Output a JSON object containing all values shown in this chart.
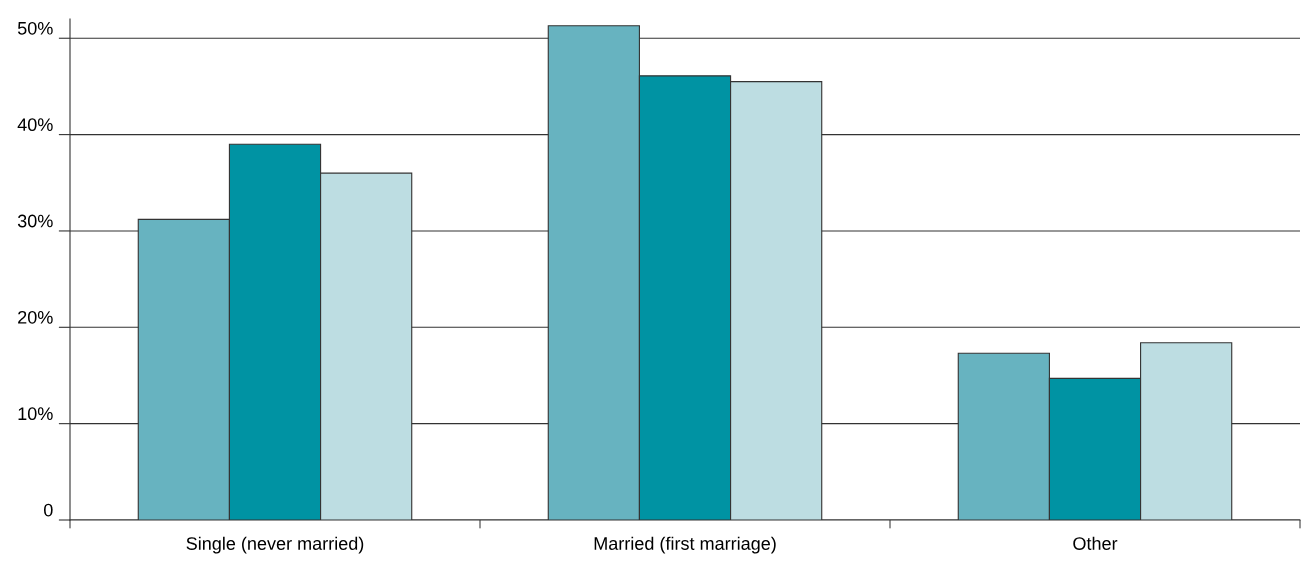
{
  "chart_data": {
    "type": "bar",
    "categories": [
      "Single (never married)",
      "Married (first marriage)",
      "Other"
    ],
    "series": [
      {
        "color": "#67b3c0",
        "values": [
          31.2,
          51.3,
          17.3
        ]
      },
      {
        "color": "#0093a3",
        "values": [
          39.0,
          46.1,
          14.7
        ]
      },
      {
        "color": "#bddde2",
        "values": [
          36.0,
          45.5,
          18.4
        ]
      }
    ],
    "ylim": [
      0,
      52
    ],
    "yticks": [
      {
        "value": 0,
        "label": "0"
      },
      {
        "value": 10,
        "label": "10%"
      },
      {
        "value": 20,
        "label": "20%"
      },
      {
        "value": 30,
        "label": "30%"
      },
      {
        "value": 40,
        "label": "40%"
      },
      {
        "value": 50,
        "label": "50%"
      }
    ],
    "grid": "y",
    "legend": false
  }
}
